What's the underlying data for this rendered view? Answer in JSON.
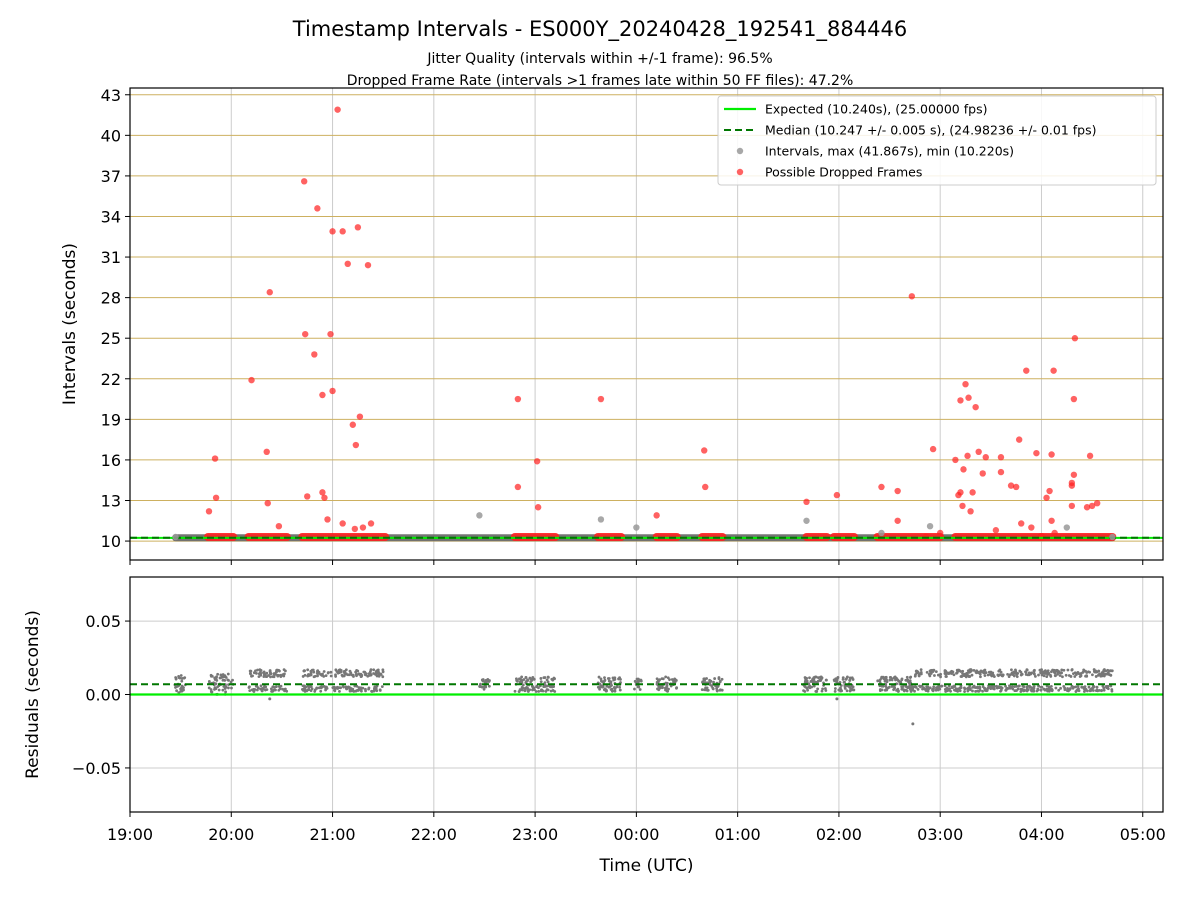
{
  "figure": {
    "title": "Timestamp Intervals - ES000Y_20240428_192541_884446",
    "subtitle_1": "Jitter Quality (intervals within +/-1 frame): 96.5%",
    "subtitle_2": "Dropped Frame Rate (intervals >1 frames late within 50 FF files): 47.2%"
  },
  "colors": {
    "expected": "#00ee00",
    "median": "#007700",
    "intervals": "#999999",
    "dropped": "#ff2020",
    "residuals": "#777777",
    "hgrid_top": "#cdb060",
    "grid": "#cccccc"
  },
  "chart_data": [
    {
      "type": "scatter",
      "ylabel": "Intervals (seconds)",
      "xlim_hours": [
        19.0,
        29.2
      ],
      "ylim": [
        8.6,
        43.5
      ],
      "yticks": [
        10,
        13,
        16,
        19,
        22,
        25,
        28,
        31,
        34,
        37,
        40,
        43
      ],
      "grid": true,
      "legend": {
        "placement": "top-right",
        "entries": [
          "Expected (10.240s), (25.00000 fps)",
          "Median (10.247 +/- 0.005 s), (24.98236 +/- 0.01 fps)",
          "Intervals, max (41.867s), min (10.220s)",
          "Possible Dropped Frames"
        ]
      },
      "expected_line": 10.24,
      "median_line": 10.247,
      "interval_band": {
        "x_start": 19.45,
        "x_end": 28.7,
        "y": 10.247
      },
      "intervals_points": [
        [
          22.45,
          11.9
        ],
        [
          23.65,
          11.6
        ],
        [
          24.0,
          11.0
        ],
        [
          25.68,
          11.5
        ],
        [
          26.42,
          10.6
        ],
        [
          26.9,
          11.1
        ],
        [
          28.25,
          11.0
        ],
        [
          19.45,
          10.3
        ],
        [
          28.7,
          10.3
        ]
      ],
      "dropped_segments": [
        [
          19.77,
          20.02
        ],
        [
          20.17,
          20.55
        ],
        [
          20.7,
          21.52
        ],
        [
          22.8,
          23.2
        ],
        [
          23.62,
          23.85
        ],
        [
          24.2,
          24.4
        ],
        [
          24.65,
          24.85
        ],
        [
          25.68,
          25.88
        ],
        [
          25.95,
          26.15
        ],
        [
          26.38,
          26.85
        ],
        [
          26.87,
          27.0
        ],
        [
          27.15,
          28.0
        ],
        [
          28.0,
          28.7
        ]
      ],
      "dropped_points": [
        [
          19.78,
          12.2
        ],
        [
          19.84,
          16.1
        ],
        [
          19.85,
          13.2
        ],
        [
          20.2,
          21.9
        ],
        [
          20.35,
          16.6
        ],
        [
          20.36,
          12.8
        ],
        [
          20.38,
          28.4
        ],
        [
          20.47,
          11.1
        ],
        [
          20.72,
          36.6
        ],
        [
          20.73,
          25.3
        ],
        [
          20.75,
          13.3
        ],
        [
          20.82,
          23.8
        ],
        [
          20.85,
          34.6
        ],
        [
          20.9,
          13.6
        ],
        [
          20.9,
          20.8
        ],
        [
          20.92,
          13.2
        ],
        [
          20.95,
          11.6
        ],
        [
          20.98,
          25.3
        ],
        [
          21.0,
          21.1
        ],
        [
          21.0,
          32.9
        ],
        [
          21.05,
          41.9
        ],
        [
          21.1,
          11.3
        ],
        [
          21.1,
          32.9
        ],
        [
          21.15,
          30.5
        ],
        [
          21.2,
          18.6
        ],
        [
          21.22,
          10.9
        ],
        [
          21.23,
          17.1
        ],
        [
          21.25,
          33.2
        ],
        [
          21.27,
          19.2
        ],
        [
          21.3,
          11.0
        ],
        [
          21.35,
          30.4
        ],
        [
          21.38,
          11.3
        ],
        [
          22.83,
          20.5
        ],
        [
          22.83,
          14.0
        ],
        [
          23.02,
          15.9
        ],
        [
          23.03,
          12.5
        ],
        [
          23.65,
          20.5
        ],
        [
          24.2,
          11.9
        ],
        [
          24.67,
          16.7
        ],
        [
          24.68,
          14.0
        ],
        [
          25.68,
          12.9
        ],
        [
          25.98,
          13.4
        ],
        [
          26.42,
          14.0
        ],
        [
          26.58,
          13.7
        ],
        [
          26.58,
          11.5
        ],
        [
          26.72,
          28.1
        ],
        [
          26.93,
          16.8
        ],
        [
          27.0,
          10.6
        ],
        [
          27.15,
          16.0
        ],
        [
          27.18,
          13.4
        ],
        [
          27.2,
          20.4
        ],
        [
          27.2,
          13.6
        ],
        [
          27.22,
          12.6
        ],
        [
          27.23,
          15.3
        ],
        [
          27.25,
          21.6
        ],
        [
          27.27,
          16.3
        ],
        [
          27.28,
          20.6
        ],
        [
          27.3,
          12.2
        ],
        [
          27.32,
          13.6
        ],
        [
          27.35,
          19.9
        ],
        [
          27.38,
          16.6
        ],
        [
          27.42,
          15.0
        ],
        [
          27.45,
          16.2
        ],
        [
          27.55,
          10.8
        ],
        [
          27.6,
          16.2
        ],
        [
          27.6,
          15.1
        ],
        [
          27.7,
          14.1
        ],
        [
          27.75,
          14.0
        ],
        [
          27.78,
          17.5
        ],
        [
          27.8,
          11.3
        ],
        [
          27.85,
          22.6
        ],
        [
          27.9,
          11.0
        ],
        [
          27.95,
          16.5
        ],
        [
          28.05,
          13.2
        ],
        [
          28.08,
          13.7
        ],
        [
          28.1,
          11.5
        ],
        [
          28.1,
          16.4
        ],
        [
          28.12,
          22.6
        ],
        [
          28.13,
          10.6
        ],
        [
          28.3,
          14.1
        ],
        [
          28.3,
          14.3
        ],
        [
          28.3,
          12.6
        ],
        [
          28.32,
          14.9
        ],
        [
          28.32,
          20.5
        ],
        [
          28.33,
          25.0
        ],
        [
          28.45,
          12.5
        ],
        [
          28.48,
          16.3
        ],
        [
          28.5,
          12.6
        ],
        [
          28.55,
          12.8
        ]
      ]
    },
    {
      "type": "scatter",
      "ylabel": "Residuals (seconds)",
      "xlabel": "Time (UTC)",
      "xlim_hours": [
        19.0,
        29.2
      ],
      "xticks": [
        "19:00",
        "20:00",
        "21:00",
        "22:00",
        "23:00",
        "00:00",
        "01:00",
        "02:00",
        "03:00",
        "04:00",
        "05:00"
      ],
      "ylim": [
        -0.08,
        0.08
      ],
      "yticks": [
        0.05,
        0.0,
        -0.05
      ],
      "ytick_labels": [
        "0.05",
        "0.00",
        "−0.05"
      ],
      "expected_line": 0.0,
      "median_line": 0.007,
      "clusters": [
        {
          "x_start": 19.43,
          "x_end": 19.55,
          "spread": 0.006
        },
        {
          "x_start": 19.78,
          "x_end": 20.02,
          "spread": 0.007
        },
        {
          "x_start": 20.17,
          "x_end": 20.55,
          "spread": 0.008
        },
        {
          "x_start": 20.7,
          "x_end": 21.5,
          "spread": 0.009
        },
        {
          "x_start": 22.45,
          "x_end": 22.55,
          "spread": 0.004
        },
        {
          "x_start": 22.8,
          "x_end": 23.2,
          "spread": 0.005
        },
        {
          "x_start": 23.62,
          "x_end": 23.85,
          "spread": 0.005
        },
        {
          "x_start": 23.98,
          "x_end": 24.05,
          "spread": 0.004
        },
        {
          "x_start": 24.2,
          "x_end": 24.4,
          "spread": 0.005
        },
        {
          "x_start": 24.65,
          "x_end": 24.85,
          "spread": 0.005
        },
        {
          "x_start": 25.65,
          "x_end": 25.88,
          "spread": 0.005
        },
        {
          "x_start": 25.95,
          "x_end": 26.15,
          "spread": 0.005
        },
        {
          "x_start": 26.38,
          "x_end": 26.72,
          "spread": 0.005
        },
        {
          "x_start": 26.72,
          "x_end": 28.7,
          "spread": 0.008
        }
      ],
      "outliers": [
        [
          26.73,
          -0.02
        ],
        [
          25.68,
          0.011
        ],
        [
          25.98,
          -0.003
        ],
        [
          20.38,
          -0.003
        ]
      ]
    }
  ]
}
